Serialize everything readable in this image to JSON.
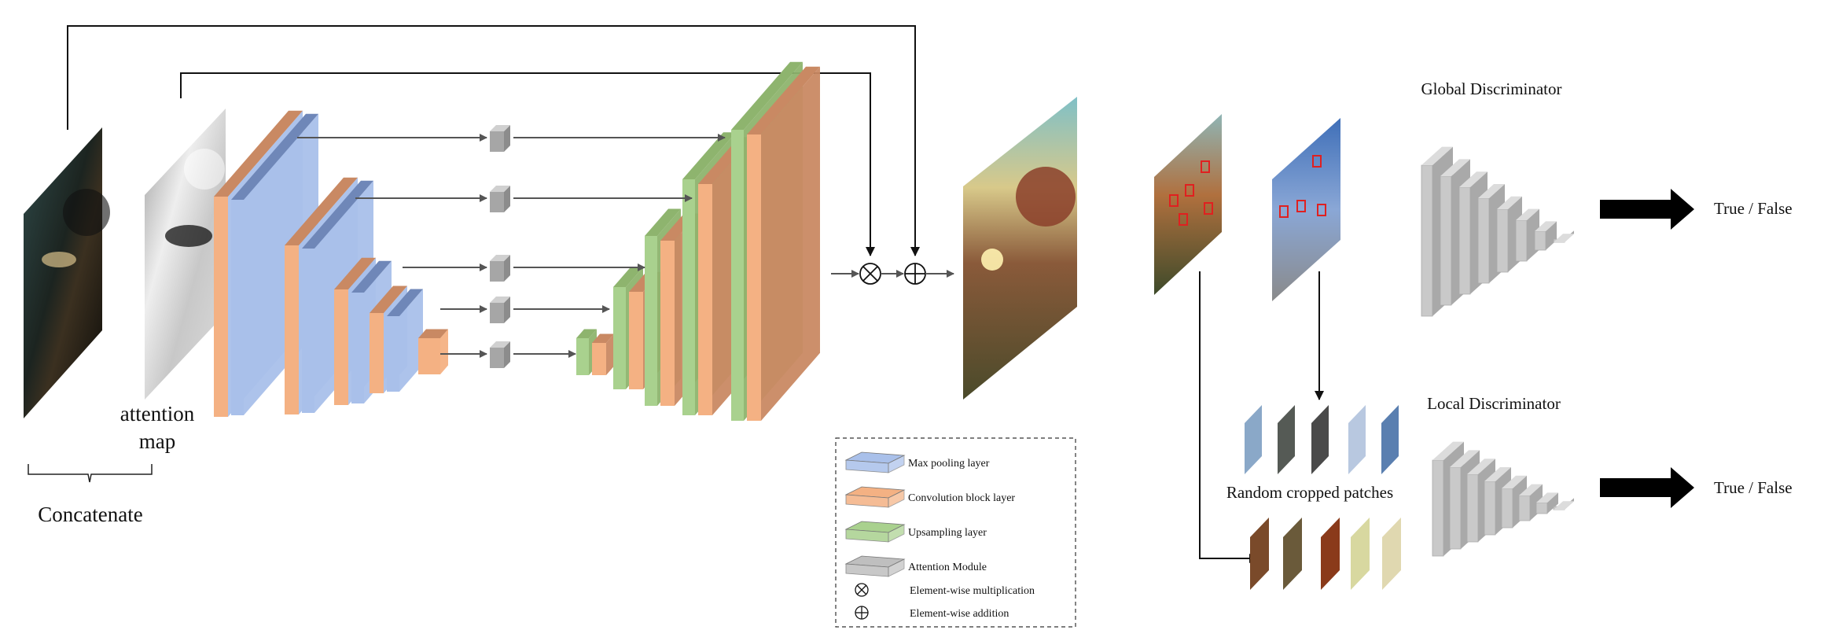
{
  "labels": {
    "attention_map_line1": "attention",
    "attention_map_line2": "map",
    "concatenate": "Concatenate",
    "global_discriminator": "Global Discriminator",
    "local_discriminator": "Local Discriminator",
    "random_cropped_patches": "Random cropped patches",
    "global_output": "True / False",
    "local_output": "True / False"
  },
  "legend": {
    "items": [
      {
        "label": "Max pooling layer",
        "color": "#a9c0ea"
      },
      {
        "label": "Convolution block layer",
        "color": "#f4b183"
      },
      {
        "label": "Upsampling layer",
        "color": "#a9d18e"
      },
      {
        "label": "Attention Module",
        "color": "#bfbfbf"
      }
    ],
    "operators": [
      {
        "symbol": "⊗",
        "label": "Element-wise multiplication"
      },
      {
        "symbol": "⊕",
        "label": "Element-wise addition"
      }
    ]
  },
  "colors": {
    "conv": "#f4b183",
    "conv_dark": "#c98963",
    "pool": "#a9c0ea",
    "pool_dark": "#6f87b8",
    "up": "#a9d18e",
    "up_dark": "#8eb46e",
    "attention": "#bfbfbf",
    "arrow": "#555555"
  },
  "icons": {
    "multiply": "circled-times-icon",
    "add": "circled-plus-icon",
    "output_arrow": "thick-right-arrow-icon"
  }
}
